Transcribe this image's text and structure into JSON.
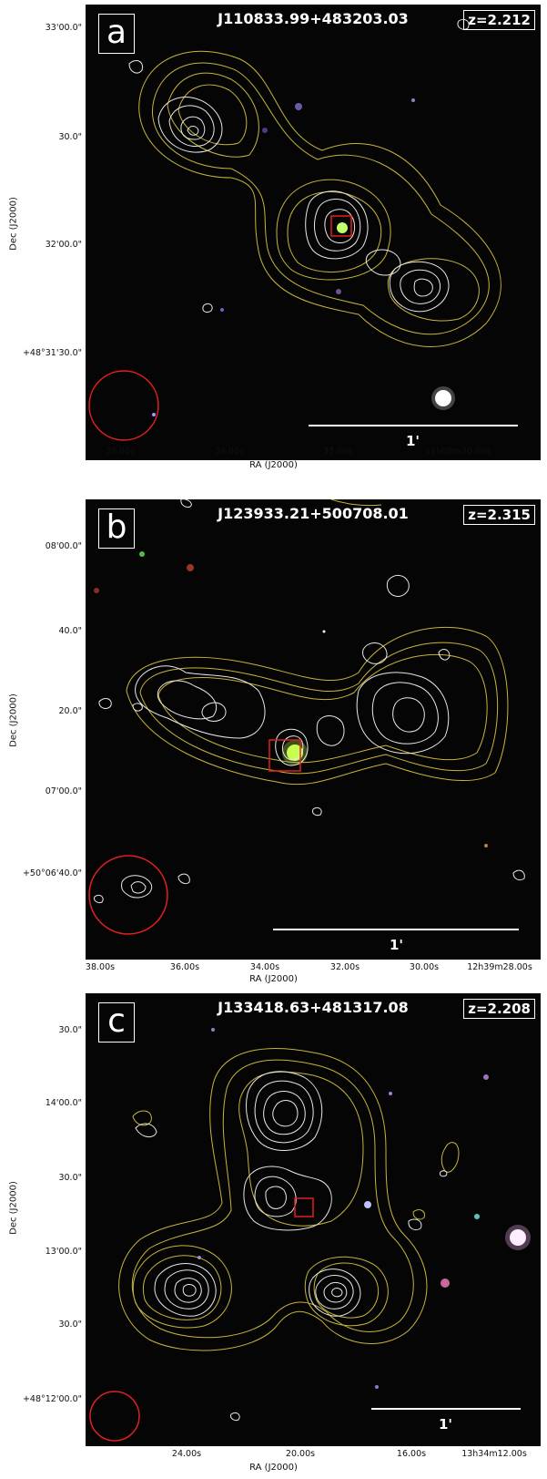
{
  "panels": [
    {
      "letter": "a",
      "name": "J110833.99+483203.03",
      "redshift": "z=2.212",
      "scale_label": "1'",
      "x_axis_title": "RA (J2000)",
      "y_axis_title": "Dec (J2000)",
      "y_ticks": [
        "33'00.0\"",
        "30.0\"",
        "32'00.0\"",
        "+48°31'30.0\""
      ],
      "x_ticks": [
        "39.00s",
        "36.00s",
        "33.00s",
        "11h08m30.00s"
      ]
    },
    {
      "letter": "b",
      "name": "J123933.21+500708.01",
      "redshift": "z=2.315",
      "scale_label": "1'",
      "x_axis_title": "RA (J2000)",
      "y_axis_title": "Dec (J2000)",
      "y_ticks": [
        "08'00.0\"",
        "40.0\"",
        "20.0\"",
        "07'00.0\"",
        "+50°06'40.0\""
      ],
      "x_ticks": [
        "38.00s",
        "36.00s",
        "34.00s",
        "32.00s",
        "30.00s",
        "12h39m28.00s"
      ]
    },
    {
      "letter": "c",
      "name": "J133418.63+481317.08",
      "redshift": "z=2.208",
      "scale_label": "1'",
      "x_axis_title": "RA (J2000)",
      "y_axis_title": "Dec (J2000)",
      "y_ticks": [
        "30.0\"",
        "14'00.0\"",
        "30.0\"",
        "13'00.0\"",
        "30.0\"",
        "+48°12'00.0\""
      ],
      "x_ticks": [
        "24.00s",
        "20.00s",
        "16.00s",
        "13h34m12.00s"
      ]
    }
  ],
  "colors": {
    "contour_yellow": "#c8b43a",
    "contour_white": "#e8e8e8",
    "beam_red": "#e02020",
    "background": "#050505"
  }
}
